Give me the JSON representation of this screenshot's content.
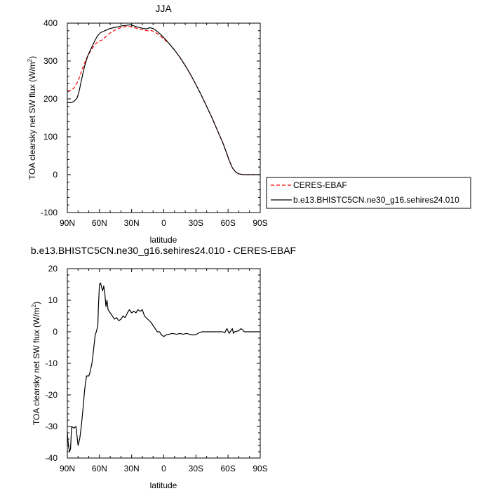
{
  "chart_data": [
    {
      "type": "line",
      "title": "JJA",
      "xlabel": "latitude",
      "ylabel_main": "TOA clearsky net SW flux (W/m",
      "ylabel_sup": "2",
      "ylabel_end": ")",
      "x_ticks": [
        "90N",
        "60N",
        "30N",
        "0",
        "30S",
        "60S",
        "90S"
      ],
      "x_tick_values": [
        90,
        60,
        30,
        0,
        -30,
        -60,
        -90
      ],
      "xlim": [
        90,
        -90
      ],
      "ylim": [
        -100,
        400
      ],
      "y_ticks": [
        400,
        300,
        200,
        100,
        0,
        -100
      ],
      "legend_position": "right",
      "series": [
        {
          "name": "CERES-EBAF",
          "color": "#ff0000",
          "dash": "dashed",
          "points": [
            [
              90,
              222
            ],
            [
              87,
              222
            ],
            [
              84,
              228
            ],
            [
              80,
              247
            ],
            [
              76,
              280
            ],
            [
              72,
              308
            ],
            [
              68,
              328
            ],
            [
              64,
              344
            ],
            [
              61,
              352
            ],
            [
              58,
              355
            ],
            [
              55,
              362
            ],
            [
              52,
              370
            ],
            [
              48,
              378
            ],
            [
              44,
              384
            ],
            [
              40,
              388
            ],
            [
              36,
              391
            ],
            [
              33,
              392
            ],
            [
              30,
              390
            ],
            [
              27,
              388
            ],
            [
              24,
              385
            ],
            [
              21,
              383
            ],
            [
              18,
              381
            ],
            [
              15,
              380
            ],
            [
              12,
              381
            ],
            [
              9,
              378
            ],
            [
              6,
              372
            ],
            [
              3,
              366
            ],
            [
              0,
              358
            ],
            [
              -5,
              346
            ],
            [
              -10,
              329
            ],
            [
              -15,
              310
            ],
            [
              -20,
              288
            ],
            [
              -25,
              264
            ],
            [
              -30,
              238
            ],
            [
              -35,
              210
            ],
            [
              -40,
              180
            ],
            [
              -45,
              150
            ],
            [
              -50,
              117
            ],
            [
              -55,
              85
            ],
            [
              -58,
              62
            ],
            [
              -61,
              38
            ],
            [
              -64,
              18
            ],
            [
              -67,
              7
            ],
            [
              -70,
              2
            ],
            [
              -73,
              0.5
            ],
            [
              -76,
              0
            ],
            [
              -80,
              0
            ],
            [
              -85,
              0
            ],
            [
              -90,
              0
            ]
          ]
        },
        {
          "name": "b.e13.BHISTC5CN.ne30_g16.sehires24.010",
          "color": "#000000",
          "dash": "solid",
          "points": [
            [
              90,
              190
            ],
            [
              87,
              190
            ],
            [
              84,
              193
            ],
            [
              81,
              202
            ],
            [
              79,
              220
            ],
            [
              77,
              248
            ],
            [
              74,
              285
            ],
            [
              71,
              313
            ],
            [
              68,
              332
            ],
            [
              65,
              350
            ],
            [
              62,
              366
            ],
            [
              59,
              375
            ],
            [
              55,
              380
            ],
            [
              51,
              385
            ],
            [
              47,
              388
            ],
            [
              43,
              390
            ],
            [
              39,
              393
            ],
            [
              35,
              394
            ],
            [
              31,
              396
            ],
            [
              28,
              393
            ],
            [
              25,
              390
            ],
            [
              22,
              388
            ],
            [
              19,
              386
            ],
            [
              16,
              385
            ],
            [
              13,
              388
            ],
            [
              10,
              386
            ],
            [
              7,
              380
            ],
            [
              4,
              373
            ],
            [
              0,
              362
            ],
            [
              -5,
              346
            ],
            [
              -10,
              329
            ],
            [
              -15,
              310
            ],
            [
              -20,
              288
            ],
            [
              -25,
              264
            ],
            [
              -30,
              238
            ],
            [
              -35,
              210
            ],
            [
              -40,
              180
            ],
            [
              -45,
              150
            ],
            [
              -50,
              117
            ],
            [
              -55,
              85
            ],
            [
              -58,
              62
            ],
            [
              -61,
              38
            ],
            [
              -64,
              18
            ],
            [
              -67,
              7
            ],
            [
              -70,
              2
            ],
            [
              -73,
              0.5
            ],
            [
              -76,
              0
            ],
            [
              -80,
              0
            ],
            [
              -85,
              0
            ],
            [
              -90,
              0
            ]
          ]
        }
      ]
    },
    {
      "type": "line",
      "title": "b.e13.BHISTC5CN.ne30_g16.sehires24.010 - CERES-EBAF",
      "xlabel": "latitude",
      "ylabel_main": "TOA clearsky net SW flux (W/m",
      "ylabel_sup": "2",
      "ylabel_end": ")",
      "x_ticks": [
        "90N",
        "60N",
        "30N",
        "0",
        "30S",
        "60S",
        "90S"
      ],
      "x_tick_values": [
        90,
        60,
        30,
        0,
        -30,
        -60,
        -90
      ],
      "xlim": [
        90,
        -90
      ],
      "ylim": [
        -40,
        20
      ],
      "y_ticks": [
        20,
        10,
        0,
        -10,
        -20,
        -30,
        -40
      ],
      "series": [
        {
          "color": "#000000",
          "dash": "solid",
          "points": [
            [
              90,
              -32
            ],
            [
              89,
              -36
            ],
            [
              88,
              -38
            ],
            [
              87,
              -37
            ],
            [
              86,
              -30
            ],
            [
              84,
              -30.5
            ],
            [
              82,
              -30
            ],
            [
              81,
              -33
            ],
            [
              80,
              -36
            ],
            [
              78.5,
              -34
            ],
            [
              77,
              -30
            ],
            [
              75,
              -23
            ],
            [
              74,
              -19
            ],
            [
              73,
              -16
            ],
            [
              72,
              -14
            ],
            [
              70,
              -14
            ],
            [
              69,
              -13
            ],
            [
              67,
              -10
            ],
            [
              66,
              -7
            ],
            [
              64,
              -1
            ],
            [
              63,
              0
            ],
            [
              61.5,
              2
            ],
            [
              61,
              8
            ],
            [
              60,
              15
            ],
            [
              59,
              15.5
            ],
            [
              58,
              14
            ],
            [
              57,
              13
            ],
            [
              56,
              14.5
            ],
            [
              55,
              12
            ],
            [
              54,
              8
            ],
            [
              53,
              10
            ],
            [
              52,
              7
            ],
            [
              50,
              6
            ],
            [
              48,
              5
            ],
            [
              46,
              4
            ],
            [
              44,
              4.5
            ],
            [
              42,
              3.5
            ],
            [
              40,
              4
            ],
            [
              38,
              5
            ],
            [
              36,
              4.5
            ],
            [
              34,
              6
            ],
            [
              32,
              7
            ],
            [
              30,
              6
            ],
            [
              28,
              6.5
            ],
            [
              26,
              6
            ],
            [
              24,
              7
            ],
            [
              22,
              6.5
            ],
            [
              20,
              7
            ],
            [
              18,
              5
            ],
            [
              15,
              4
            ],
            [
              12,
              3
            ],
            [
              10,
              2
            ],
            [
              8,
              1
            ],
            [
              6,
              0
            ],
            [
              4,
              0
            ],
            [
              2,
              -1
            ],
            [
              0,
              -1.5
            ],
            [
              -2,
              -1
            ],
            [
              -5,
              -0.8
            ],
            [
              -8,
              -0.5
            ],
            [
              -12,
              -0.8
            ],
            [
              -15,
              -0.5
            ],
            [
              -18,
              -0.8
            ],
            [
              -21,
              -0.5
            ],
            [
              -24,
              -0.8
            ],
            [
              -27,
              -1
            ],
            [
              -30,
              -0.9
            ],
            [
              -33,
              -0.3
            ],
            [
              -36,
              0
            ],
            [
              -40,
              0
            ],
            [
              -44,
              0
            ],
            [
              -48,
              0
            ],
            [
              -52,
              0
            ],
            [
              -55,
              0
            ],
            [
              -57,
              -0.3
            ],
            [
              -58,
              0.5
            ],
            [
              -59,
              1
            ],
            [
              -60,
              0.2
            ],
            [
              -61,
              -0.5
            ],
            [
              -62,
              0
            ],
            [
              -64,
              1
            ],
            [
              -65,
              -0.5
            ],
            [
              -66,
              0
            ],
            [
              -70,
              0.3
            ],
            [
              -72,
              1
            ],
            [
              -74,
              0.5
            ],
            [
              -75,
              0
            ],
            [
              -80,
              0
            ],
            [
              -85,
              0
            ],
            [
              -90,
              0
            ]
          ]
        }
      ]
    }
  ]
}
